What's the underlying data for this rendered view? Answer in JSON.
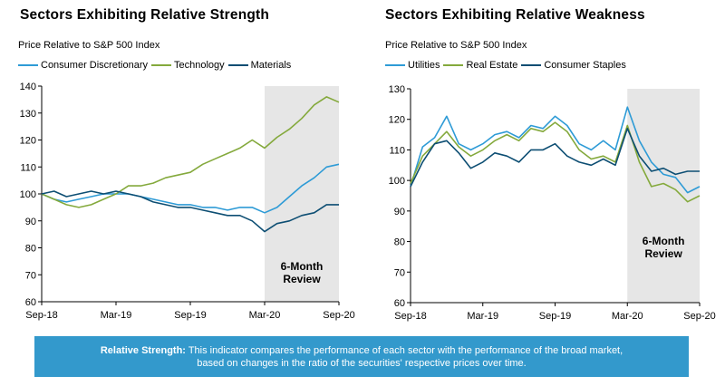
{
  "caption": {
    "label": "Relative Strength:",
    "line1": "This indicator compares the performance of each sector with the performance of the broad market,",
    "line2": "based on changes in the ratio of the securities' respective prices over time."
  },
  "chart_data": [
    {
      "type": "line",
      "title": "Sectors Exhibiting Relative Strength",
      "subtitle": "Price Relative to S&P 500 Index",
      "xlabel": "",
      "ylabel": "",
      "ylim": [
        60,
        140
      ],
      "yticks": [
        60,
        70,
        80,
        90,
        100,
        110,
        120,
        130,
        140
      ],
      "xlim": [
        "2018-09",
        "2020-09"
      ],
      "xticks": [
        "Sep-18",
        "Mar-19",
        "Sep-19",
        "Mar-20",
        "Sep-20"
      ],
      "grid": false,
      "legend": "top",
      "shaded_region": {
        "from": "2020-03",
        "to": "2020-09",
        "label_line1": "6-Month",
        "label_line2": "Review",
        "color": "#e6e6e6"
      },
      "x": [
        "2018-09",
        "2018-10",
        "2018-11",
        "2018-12",
        "2019-01",
        "2019-02",
        "2019-03",
        "2019-04",
        "2019-05",
        "2019-06",
        "2019-07",
        "2019-08",
        "2019-09",
        "2019-10",
        "2019-11",
        "2019-12",
        "2020-01",
        "2020-02",
        "2020-03",
        "2020-04",
        "2020-05",
        "2020-06",
        "2020-07",
        "2020-08",
        "2020-09"
      ],
      "series": [
        {
          "name": "Consumer Discretionary",
          "color": "#2e9bd6",
          "values": [
            100,
            98,
            97,
            98,
            99,
            100,
            100,
            100,
            99,
            98,
            97,
            96,
            96,
            95,
            95,
            94,
            95,
            95,
            93,
            95,
            99,
            103,
            106,
            110,
            111
          ]
        },
        {
          "name": "Technology",
          "color": "#84a93c",
          "values": [
            100,
            98,
            96,
            95,
            96,
            98,
            100,
            103,
            103,
            104,
            106,
            107,
            108,
            111,
            113,
            115,
            117,
            120,
            117,
            121,
            124,
            128,
            133,
            136,
            134
          ]
        },
        {
          "name": "Materials",
          "color": "#0d4e73",
          "values": [
            100,
            101,
            99,
            100,
            101,
            100,
            101,
            100,
            99,
            97,
            96,
            95,
            95,
            94,
            93,
            92,
            92,
            90,
            86,
            89,
            90,
            92,
            93,
            96,
            96
          ]
        }
      ]
    },
    {
      "type": "line",
      "title": "Sectors Exhibiting Relative Weakness",
      "subtitle": "Price Relative to S&P 500 Index",
      "xlabel": "",
      "ylabel": "",
      "ylim": [
        60,
        130
      ],
      "yticks": [
        60,
        70,
        80,
        90,
        100,
        110,
        120,
        130
      ],
      "xlim": [
        "2018-09",
        "2020-09"
      ],
      "xticks": [
        "Sep-18",
        "Mar-19",
        "Sep-19",
        "Mar-20",
        "Sep-20"
      ],
      "grid": false,
      "legend": "top",
      "shaded_region": {
        "from": "2020-03",
        "to": "2020-09",
        "label_line1": "6-Month",
        "label_line2": "Review",
        "color": "#e6e6e6"
      },
      "x": [
        "2018-09",
        "2018-10",
        "2018-11",
        "2018-12",
        "2019-01",
        "2019-02",
        "2019-03",
        "2019-04",
        "2019-05",
        "2019-06",
        "2019-07",
        "2019-08",
        "2019-09",
        "2019-10",
        "2019-11",
        "2019-12",
        "2020-01",
        "2020-02",
        "2020-03",
        "2020-04",
        "2020-05",
        "2020-06",
        "2020-07",
        "2020-08",
        "2020-09"
      ],
      "series": [
        {
          "name": "Utilities",
          "color": "#2e9bd6",
          "values": [
            98,
            111,
            114,
            121,
            112,
            110,
            112,
            115,
            116,
            114,
            118,
            117,
            121,
            118,
            112,
            110,
            113,
            110,
            124,
            113,
            106,
            102,
            101,
            96,
            98
          ]
        },
        {
          "name": "Real Estate",
          "color": "#84a93c",
          "values": [
            99,
            108,
            112,
            116,
            111,
            108,
            110,
            113,
            115,
            113,
            117,
            116,
            119,
            116,
            110,
            107,
            108,
            106,
            118,
            106,
            98,
            99,
            97,
            93,
            95
          ]
        },
        {
          "name": "Consumer Staples",
          "color": "#0d4e73",
          "values": [
            98,
            106,
            112,
            113,
            109,
            104,
            106,
            109,
            108,
            106,
            110,
            110,
            112,
            108,
            106,
            105,
            107,
            105,
            117,
            108,
            103,
            104,
            102,
            103,
            103
          ]
        }
      ]
    }
  ]
}
